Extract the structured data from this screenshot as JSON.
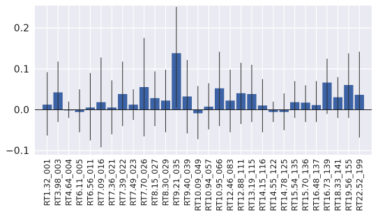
{
  "chart_data": {
    "type": "bar",
    "title": "",
    "xlabel": "",
    "ylabel": "",
    "ylim": [
      -0.11,
      0.255
    ],
    "yticks": [
      -0.1,
      0.0,
      0.1,
      0.2
    ],
    "ytick_labels": [
      "−0.1",
      "0.0",
      "0.1",
      "0.2"
    ],
    "grid": true,
    "colors": {
      "plot_background": "#eaeaf2",
      "grid": "#ffffff",
      "bar_fill": "#3b63a6",
      "bar_edge": "#2b4f8c",
      "error_bar": "#2b2b2b",
      "zero_line": "#1a1a1a"
    },
    "categories": [
      "RT1.32_001",
      "RT3.98_003",
      "RT4.64_004",
      "RT6.11_005",
      "RT6.56_011",
      "RT7.09_016",
      "RT7.36_021",
      "RT7.39_022",
      "RT7.49_023",
      "RT7.70_026",
      "RT8.15_027",
      "RT8.30_029",
      "RT9.21_035",
      "RT9.40_039",
      "RT10.09_049",
      "RT10.94_057",
      "RT10.95_066",
      "RT12.46_083",
      "RT12.88_111",
      "RT13.19_115",
      "RT14.15_116",
      "RT14.55_122",
      "RT14.78_125",
      "RT15.54_135",
      "RT15.70_136",
      "RT16.48_137",
      "RT16.73_139",
      "RT18.33_141",
      "RT19.56_155",
      "RT22.52_199"
    ],
    "values": [
      0.012,
      0.042,
      0.0,
      -0.005,
      0.005,
      0.018,
      0.005,
      0.038,
      0.012,
      0.055,
      0.028,
      0.022,
      0.138,
      0.032,
      -0.008,
      0.007,
      0.052,
      0.022,
      0.04,
      0.038,
      0.01,
      -0.005,
      -0.005,
      0.018,
      0.017,
      0.011,
      0.066,
      0.03,
      0.06,
      0.036
    ],
    "err_low": [
      -0.063,
      -0.03,
      -0.02,
      -0.055,
      -0.075,
      -0.092,
      -0.06,
      -0.04,
      -0.025,
      -0.065,
      -0.04,
      -0.055,
      0.005,
      -0.058,
      -0.072,
      -0.048,
      -0.04,
      -0.055,
      -0.035,
      -0.03,
      -0.055,
      -0.03,
      -0.05,
      -0.02,
      -0.03,
      -0.03,
      -0.01,
      -0.02,
      -0.02,
      -0.068
    ],
    "err_high": [
      0.092,
      0.118,
      0.02,
      0.05,
      0.09,
      0.128,
      0.072,
      0.118,
      0.05,
      0.176,
      0.094,
      0.098,
      0.252,
      0.122,
      0.058,
      0.065,
      0.142,
      0.098,
      0.115,
      0.11,
      0.075,
      0.02,
      0.04,
      0.07,
      0.06,
      0.07,
      0.125,
      0.08,
      0.138,
      0.142
    ]
  }
}
